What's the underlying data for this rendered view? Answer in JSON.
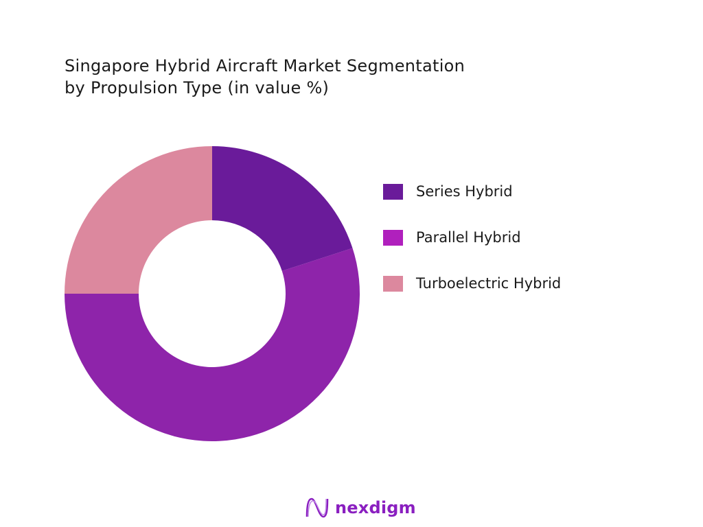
{
  "chart_data": {
    "type": "pie",
    "donut": true,
    "title": "Singapore Hybrid Aircraft Market Segmentation by Propulsion Type (in value %)",
    "title_lines": [
      "Singapore Hybrid Aircraft Market Segmentation",
      "by Propulsion Type (in value %)"
    ],
    "categories": [
      "Series Hybrid",
      "Parallel Hybrid",
      "Turboelectric Hybrid"
    ],
    "values": [
      20,
      55,
      25
    ],
    "slice_colors": [
      "#6a1b9a",
      "#8e24aa",
      "#dc889e"
    ],
    "legend_colors": [
      "#6a1b9a",
      "#b020bd",
      "#dc889e"
    ],
    "legend": "right",
    "start_angle": "top, clockwise"
  },
  "branding": {
    "logo_text": "nexdigm",
    "logo_color": "#8a1fc0"
  }
}
